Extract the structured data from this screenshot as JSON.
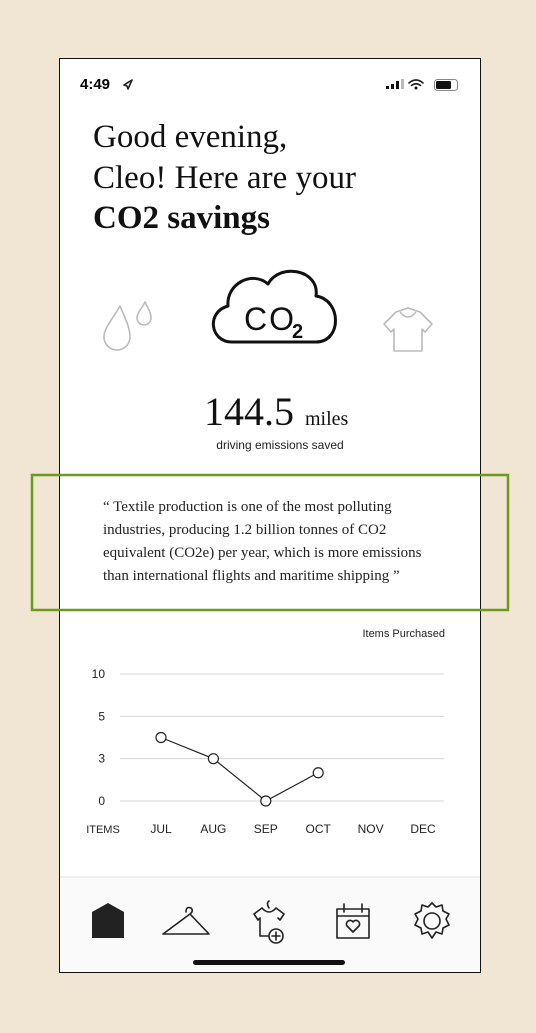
{
  "status_bar": {
    "time": "4:49"
  },
  "greeting": {
    "line1": "Good evening,",
    "line2": "Cleo! Here are your",
    "line3": "CO2 savings"
  },
  "cloud_icon": {
    "text": "CO",
    "subscript": "2"
  },
  "savings": {
    "value": "144.5",
    "unit": "miles",
    "caption": "driving emissions saved"
  },
  "quote": {
    "lines": [
      "“ Textile production is one of the most polluting",
      "industries, producing 1.2 billion tonnes of CO2",
      "equivalent (CO2e) per year, which is more emissions",
      "than international flights and maritime shipping ”"
    ]
  },
  "chart_data": {
    "type": "line",
    "title": "Items Purchased",
    "x_label": "ITEMS",
    "categories": [
      "JUL",
      "AUG",
      "SEP",
      "OCT",
      "NOV",
      "DEC"
    ],
    "values": [
      4,
      3,
      0,
      2,
      null,
      null
    ],
    "color": "#222222",
    "ylim": [
      0,
      10
    ],
    "yticks": [
      0,
      3,
      5,
      10
    ],
    "grid": true
  }
}
